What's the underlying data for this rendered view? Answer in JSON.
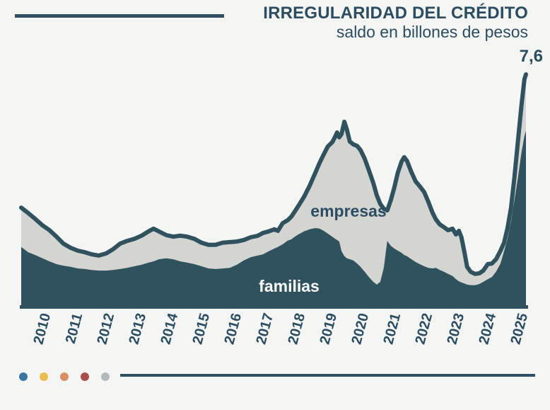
{
  "header": {
    "title": "IRREGULARIDAD DEL CRÉDITO",
    "subtitle": "saldo en billones de pesos"
  },
  "colors": {
    "accent_dark_teal": "#30525f",
    "text_dark": "#2b4d63",
    "empresas_gray": "#d4d4d1",
    "background": "#f5f5f3"
  },
  "chart_data": {
    "type": "area",
    "stacked": true,
    "title": "IRREGULARIDAD DEL CRÉDITO",
    "subtitle": "saldo en billones de pesos",
    "xlabel": "",
    "ylabel": "saldo en billones de pesos",
    "grid": false,
    "legend_position": "labels-inside-areas",
    "ylim": [
      0,
      7.6
    ],
    "end_annotation": "7,6",
    "x_ticks": [
      2010,
      2011,
      2012,
      2013,
      2014,
      2015,
      2016,
      2017,
      2018,
      2019,
      2020,
      2021,
      2022,
      2023,
      2024,
      2025
    ],
    "x": [
      2009.6,
      2009.82,
      2010.04,
      2010.27,
      2010.49,
      2010.71,
      2010.93,
      2011.16,
      2011.38,
      2011.6,
      2011.82,
      2012.04,
      2012.27,
      2012.49,
      2012.71,
      2012.93,
      2013.16,
      2013.38,
      2013.6,
      2013.76,
      2013.93,
      2014.16,
      2014.38,
      2014.6,
      2014.82,
      2015.04,
      2015.27,
      2015.49,
      2015.71,
      2015.93,
      2016.16,
      2016.38,
      2016.6,
      2016.82,
      2017.04,
      2017.2,
      2017.38,
      2017.56,
      2017.67,
      2017.82,
      2017.98,
      2018.09,
      2018.2,
      2018.31,
      2018.49,
      2018.67,
      2018.84,
      2018.98,
      2019.11,
      2019.24,
      2019.38,
      2019.47,
      2019.53,
      2019.6,
      2019.67,
      2019.76,
      2019.84,
      2019.93,
      2020.04,
      2020.16,
      2020.27,
      2020.4,
      2020.53,
      2020.67,
      2020.78,
      2020.89,
      2021.0,
      2021.11,
      2021.22,
      2021.33,
      2021.44,
      2021.56,
      2021.64,
      2021.73,
      2021.87,
      2022.0,
      2022.13,
      2022.27,
      2022.4,
      2022.53,
      2022.64,
      2022.76,
      2022.89,
      2023.02,
      2023.16,
      2023.27,
      2023.36,
      2023.44,
      2023.53,
      2023.62,
      2023.73,
      2023.87,
      2024.0,
      2024.13,
      2024.27,
      2024.4,
      2024.53,
      2024.67,
      2024.78,
      2024.89,
      2025.0,
      2025.11,
      2025.22,
      2025.33,
      2025.42,
      2025.47
    ],
    "series": [
      {
        "name": "familias",
        "color": "#30525f",
        "label_color": "#ffffff",
        "values": [
          1.95,
          1.78,
          1.69,
          1.58,
          1.48,
          1.39,
          1.34,
          1.3,
          1.25,
          1.23,
          1.2,
          1.18,
          1.18,
          1.2,
          1.23,
          1.27,
          1.32,
          1.37,
          1.44,
          1.48,
          1.55,
          1.58,
          1.55,
          1.48,
          1.44,
          1.39,
          1.32,
          1.25,
          1.23,
          1.25,
          1.27,
          1.37,
          1.51,
          1.62,
          1.67,
          1.71,
          1.81,
          1.9,
          1.95,
          2.04,
          2.16,
          2.2,
          2.29,
          2.36,
          2.46,
          2.53,
          2.57,
          2.55,
          2.48,
          2.39,
          2.29,
          2.22,
          2.18,
          2.13,
          1.81,
          1.65,
          1.58,
          1.55,
          1.51,
          1.41,
          1.3,
          1.14,
          0.97,
          0.81,
          0.72,
          0.81,
          1.27,
          2.15,
          1.99,
          1.9,
          1.83,
          1.76,
          1.69,
          1.65,
          1.55,
          1.46,
          1.39,
          1.32,
          1.27,
          1.25,
          1.27,
          1.2,
          1.14,
          1.07,
          1.0,
          0.9,
          0.83,
          0.79,
          0.76,
          0.72,
          0.7,
          0.7,
          0.74,
          0.81,
          0.9,
          0.97,
          1.14,
          1.41,
          1.81,
          2.22,
          2.78,
          3.5,
          4.24,
          5.05,
          5.58,
          5.75
        ]
      },
      {
        "name": "empresas",
        "color": "#d4d4d1",
        "label_color": "#2b4d63",
        "values": [
          1.29,
          1.28,
          1.18,
          1.08,
          1.02,
          0.9,
          0.72,
          0.62,
          0.58,
          0.55,
          0.51,
          0.49,
          0.56,
          0.68,
          0.83,
          0.88,
          0.9,
          0.95,
          1.02,
          1.07,
          0.91,
          0.76,
          0.74,
          0.84,
          0.85,
          0.83,
          0.77,
          0.77,
          0.79,
          0.84,
          0.84,
          0.76,
          0.67,
          0.65,
          0.65,
          0.7,
          0.65,
          0.63,
          0.53,
          0.69,
          0.67,
          0.74,
          0.82,
          0.93,
          1.13,
          1.43,
          1.79,
          2.15,
          2.5,
          2.85,
          3.09,
          3.34,
          3.52,
          3.41,
          3.84,
          4.4,
          4.21,
          3.85,
          3.8,
          3.85,
          3.82,
          3.7,
          3.5,
          3.24,
          2.92,
          2.55,
          1.93,
          1.0,
          1.49,
          1.99,
          2.55,
          2.99,
          3.2,
          3.12,
          2.85,
          2.64,
          2.55,
          2.43,
          2.16,
          1.83,
          1.58,
          1.49,
          1.46,
          1.43,
          1.55,
          1.46,
          1.65,
          1.48,
          1.05,
          0.58,
          0.44,
          0.37,
          0.35,
          0.37,
          0.49,
          0.44,
          0.41,
          0.42,
          0.28,
          0.35,
          0.46,
          0.76,
          1.21,
          1.55,
          1.86,
          1.85
        ]
      }
    ]
  },
  "footer": {
    "dots": [
      {
        "name": "brand-dot-blue",
        "color": "#3b74a3"
      },
      {
        "name": "brand-dot-gold",
        "color": "#e9bc4f"
      },
      {
        "name": "brand-dot-orange",
        "color": "#d88f63"
      },
      {
        "name": "brand-dot-red",
        "color": "#a94f4c"
      },
      {
        "name": "brand-dot-gray",
        "color": "#b3b9bc"
      }
    ]
  }
}
